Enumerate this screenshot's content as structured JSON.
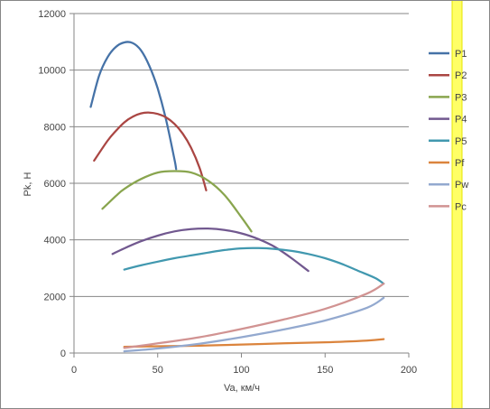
{
  "chart_data": {
    "type": "line",
    "title": "",
    "xlabel": "Va, км/ч",
    "ylabel": "Pk, Н",
    "xlim": [
      0,
      200
    ],
    "ylim": [
      0,
      12000
    ],
    "x_ticks": [
      0,
      50,
      100,
      150,
      200
    ],
    "y_ticks": [
      0,
      2000,
      4000,
      6000,
      8000,
      10000,
      12000
    ],
    "x_tick_labels": [
      "0",
      "50",
      "100",
      "150",
      "200"
    ],
    "y_tick_labels": [
      "0",
      "2000",
      "4000",
      "6000",
      "8000",
      "10000",
      "12000"
    ],
    "grid": "horizontal",
    "legend_position": "right",
    "series": [
      {
        "name": "P1",
        "color": "#4572A7",
        "x": [
          10,
          15,
          20,
          25,
          30,
          35,
          40,
          45,
          50,
          55,
          60,
          61
        ],
        "y": [
          8700,
          9800,
          10450,
          10820,
          10980,
          10960,
          10700,
          10150,
          9350,
          8250,
          6850,
          6500
        ]
      },
      {
        "name": "P2",
        "color": "#AA4643",
        "x": [
          12,
          20,
          25,
          30,
          35,
          40,
          45,
          50,
          55,
          60,
          65,
          70,
          75,
          79
        ],
        "y": [
          6800,
          7500,
          7850,
          8150,
          8350,
          8470,
          8500,
          8450,
          8330,
          8100,
          7750,
          7250,
          6550,
          5750
        ]
      },
      {
        "name": "P3",
        "color": "#89A54E",
        "x": [
          17,
          25,
          30,
          40,
          50,
          60,
          70,
          80,
          90,
          100,
          106
        ],
        "y": [
          5100,
          5550,
          5800,
          6150,
          6380,
          6430,
          6380,
          6100,
          5580,
          4800,
          4300
        ]
      },
      {
        "name": "P4",
        "color": "#71588F",
        "x": [
          23,
          30,
          40,
          50,
          60,
          70,
          80,
          90,
          100,
          110,
          120,
          130,
          140
        ],
        "y": [
          3500,
          3700,
          3950,
          4150,
          4300,
          4380,
          4400,
          4350,
          4230,
          4030,
          3750,
          3350,
          2900
        ]
      },
      {
        "name": "P5",
        "color": "#4198AF",
        "x": [
          30,
          40,
          50,
          60,
          70,
          80,
          90,
          100,
          110,
          120,
          130,
          140,
          150,
          160,
          170,
          180,
          185
        ],
        "y": [
          2950,
          3100,
          3230,
          3350,
          3450,
          3550,
          3640,
          3700,
          3710,
          3680,
          3610,
          3500,
          3350,
          3150,
          2900,
          2650,
          2450
        ]
      },
      {
        "name": "Pf",
        "color": "#DB843D",
        "x": [
          30,
          50,
          75,
          100,
          125,
          150,
          175,
          185
        ],
        "y": [
          220,
          240,
          260,
          300,
          340,
          380,
          440,
          490
        ]
      },
      {
        "name": "Pw",
        "color": "#93A9CF",
        "x": [
          30,
          50,
          75,
          100,
          125,
          150,
          175,
          185
        ],
        "y": [
          60,
          160,
          330,
          560,
          830,
          1150,
          1600,
          1950
        ]
      },
      {
        "name": "Pc",
        "color": "#D19392",
        "x": [
          30,
          50,
          75,
          100,
          125,
          150,
          175,
          185
        ],
        "y": [
          180,
          340,
          560,
          850,
          1180,
          1560,
          2100,
          2450
        ]
      }
    ]
  },
  "colors": {
    "background": "#ffffff",
    "grid": "#868686",
    "frame": "#868686",
    "highlight_strip": "#FFFF66"
  }
}
